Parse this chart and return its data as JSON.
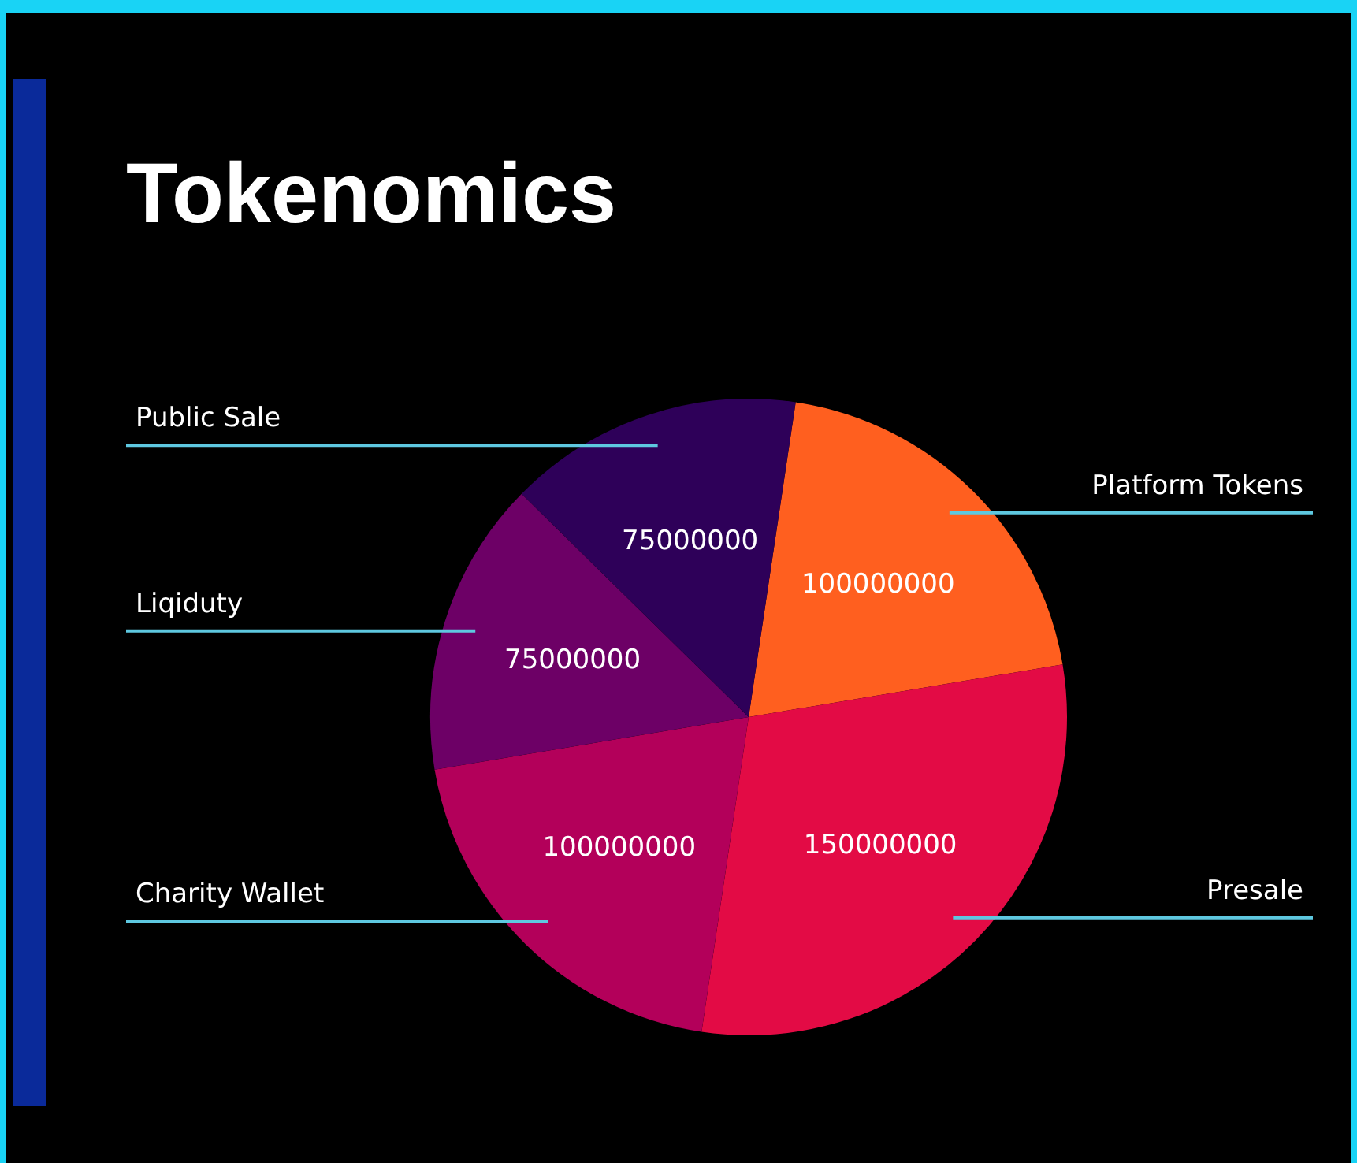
{
  "chart_data": {
    "type": "pie",
    "title": "Tokenomics",
    "categories": [
      "Platform Tokens",
      "Presale",
      "Charity Wallet",
      "Liqiduty",
      "Public Sale"
    ],
    "values": [
      100000000,
      150000000,
      100000000,
      75000000,
      75000000
    ],
    "colors": [
      "#ff5f1f",
      "#e30b45",
      "#b3005a",
      "#6d0066",
      "#2e0059"
    ],
    "data_labels": true,
    "legend": false
  }
}
